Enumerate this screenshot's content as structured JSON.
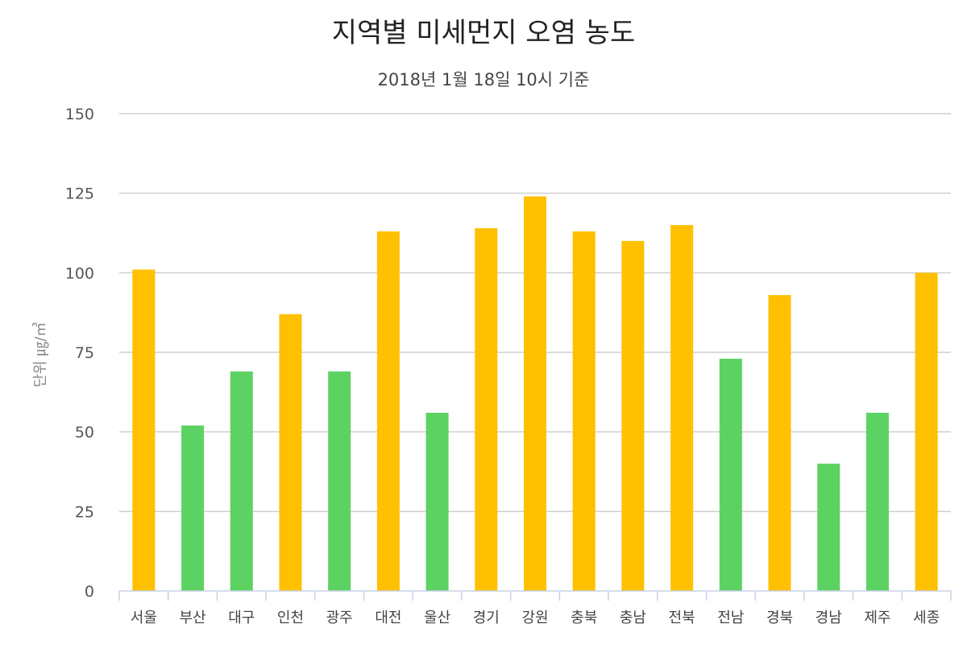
{
  "chart_data": {
    "type": "bar",
    "title": "지역별 미세먼지 오염 농도",
    "subtitle": "2018년 1월 18일 10시 기준",
    "ylabel": "단위 ㎍/㎥",
    "xlabel": "",
    "ylim": [
      0,
      150
    ],
    "yticks": [
      0,
      25,
      50,
      75,
      100,
      125,
      150
    ],
    "grid": true,
    "categories": [
      "서울",
      "부산",
      "대구",
      "인천",
      "광주",
      "대전",
      "울산",
      "경기",
      "강원",
      "충북",
      "충남",
      "전북",
      "전남",
      "경북",
      "경남",
      "제주",
      "세종"
    ],
    "values": [
      101,
      52,
      69,
      87,
      69,
      113,
      56,
      114,
      124,
      113,
      110,
      115,
      73,
      93,
      40,
      56,
      100
    ],
    "colors": {
      "high": "#ffc000",
      "normal": "#5cd263"
    },
    "color_by_category": [
      "high",
      "normal",
      "normal",
      "high",
      "normal",
      "high",
      "normal",
      "high",
      "high",
      "high",
      "high",
      "high",
      "normal",
      "high",
      "normal",
      "normal",
      "high"
    ]
  }
}
